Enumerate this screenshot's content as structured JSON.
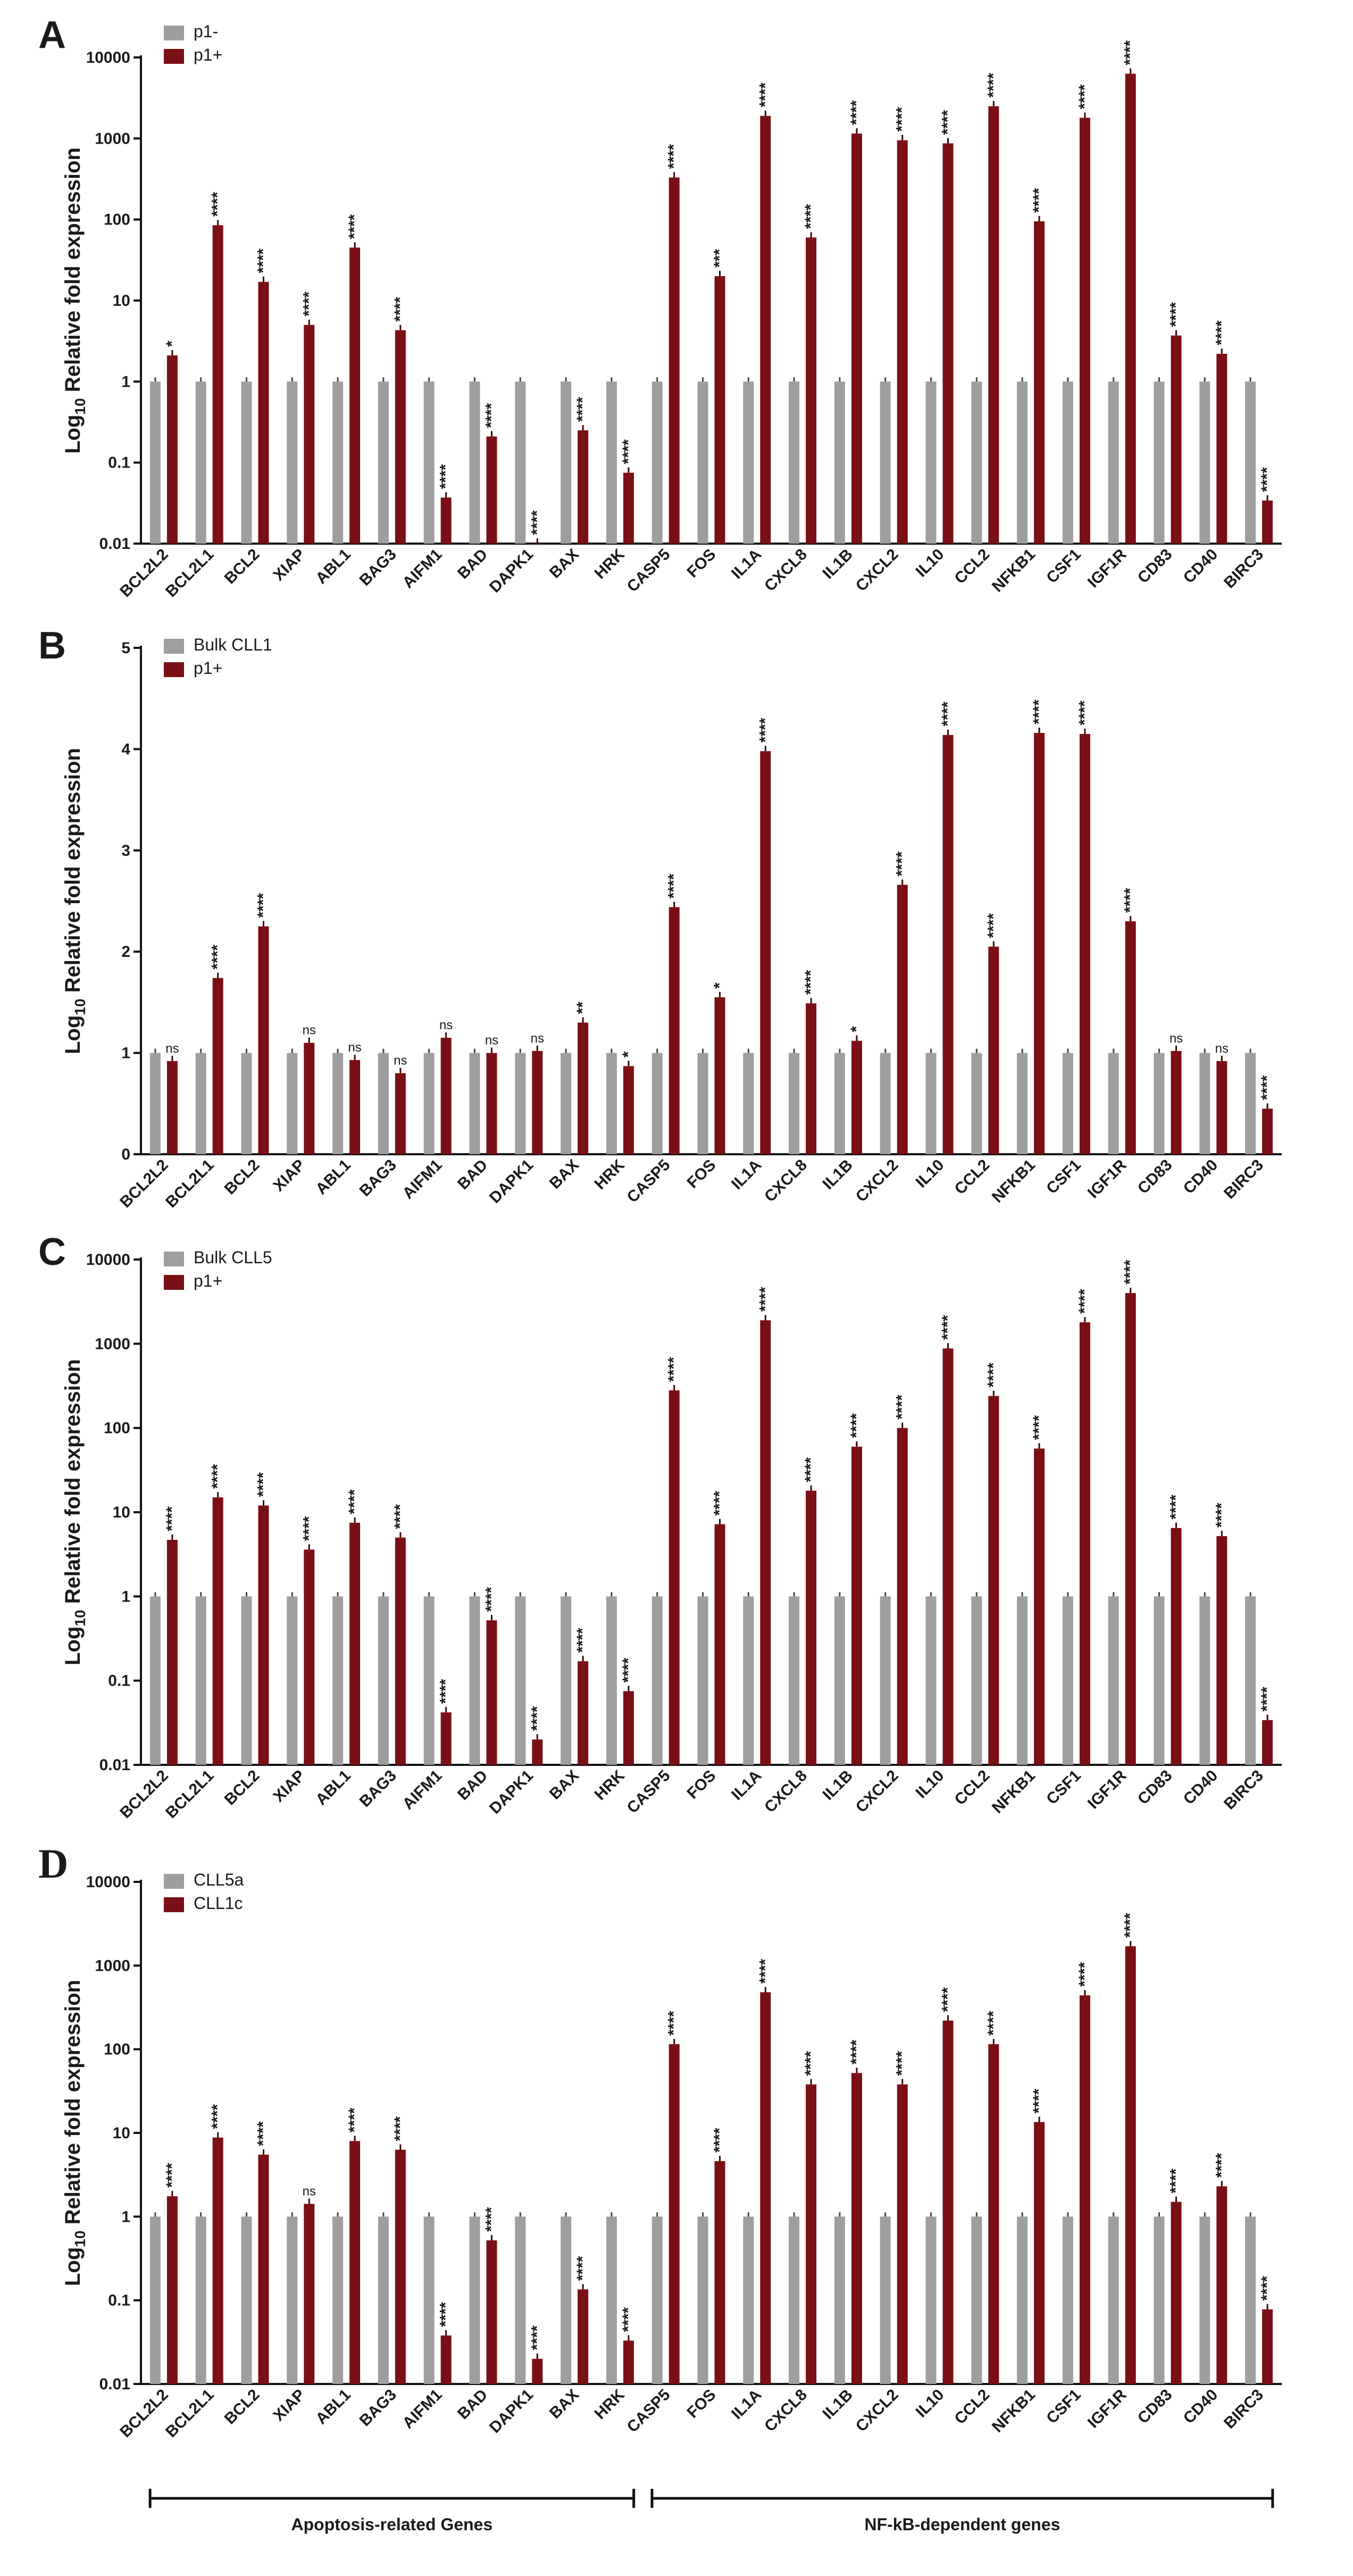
{
  "genes": [
    "BCL2L2",
    "BCL2L1",
    "BCL2",
    "XIAP",
    "ABL1",
    "BAG3",
    "AIFM1",
    "BAD",
    "DAPK1",
    "BAX",
    "HRK",
    "CASP5",
    "FOS",
    "IL1A",
    "CXCL8",
    "IL1B",
    "CXCL2",
    "IL10",
    "CCL2",
    "NFKB1",
    "CSF1",
    "IGF1R",
    "CD83",
    "CD40",
    "BIRC3"
  ],
  "colors": {
    "control": "#9e9e9e",
    "treated": "#7a0f15"
  },
  "chart_data": [
    {
      "panel": "A",
      "type": "bar",
      "scale": "log",
      "ylabel": "Log10 Relative fold expression",
      "ylim": [
        0.01,
        10000
      ],
      "yticks": [
        0.01,
        0.1,
        1,
        10,
        100,
        1000,
        10000
      ],
      "ytick_labels": [
        "0.01",
        "0.1",
        "1",
        "10",
        "100",
        "1000",
        "10000"
      ],
      "series": [
        {
          "name": "p1-",
          "values": [
            1,
            1,
            1,
            1,
            1,
            1,
            1,
            1,
            1,
            1,
            1,
            1,
            1,
            1,
            1,
            1,
            1,
            1,
            1,
            1,
            1,
            1,
            1,
            1,
            1
          ]
        },
        {
          "name": "p1+",
          "values": [
            2.1,
            85,
            17,
            5,
            45,
            4.3,
            0.037,
            0.21,
            0.01,
            0.25,
            0.075,
            330,
            20,
            1900,
            60,
            1150,
            950,
            870,
            2500,
            95,
            1800,
            6300,
            3.7,
            2.2,
            0.034
          ]
        }
      ],
      "significance": [
        "*",
        "****",
        "****",
        "****",
        "****",
        "****",
        "****",
        "****",
        "****",
        "****",
        "****",
        "****",
        "***",
        "****",
        "****",
        "****",
        "****",
        "****",
        "****",
        "****",
        "****",
        "****",
        "****",
        "****",
        "****"
      ]
    },
    {
      "panel": "B",
      "type": "bar",
      "scale": "linear",
      "ylabel": "Log10 Relative fold expression",
      "ylim": [
        0,
        5
      ],
      "yticks": [
        0,
        1,
        2,
        3,
        4,
        5
      ],
      "ytick_labels": [
        "0",
        "1",
        "2",
        "3",
        "4",
        "5"
      ],
      "series": [
        {
          "name": "Bulk CLL1",
          "values": [
            1,
            1,
            1,
            1,
            1,
            1,
            1,
            1,
            1,
            1,
            1,
            1,
            1,
            1,
            1,
            1,
            1,
            1,
            1,
            1,
            1,
            1,
            1,
            1,
            1
          ]
        },
        {
          "name": "p1+",
          "values": [
            0.92,
            1.74,
            2.25,
            1.1,
            0.93,
            0.8,
            1.15,
            1.0,
            1.02,
            1.3,
            0.87,
            2.44,
            1.55,
            3.98,
            1.49,
            1.12,
            2.66,
            4.14,
            2.05,
            4.16,
            4.15,
            2.3,
            1.02,
            0.92,
            0.45
          ]
        }
      ],
      "significance": [
        "ns",
        "****",
        "****",
        "ns",
        "ns",
        "ns",
        "ns",
        "ns",
        "ns",
        "**",
        "*",
        "****",
        "*",
        "****",
        "****",
        "*",
        "****",
        "****",
        "****",
        "****",
        "****",
        "****",
        "ns",
        "ns",
        "****"
      ]
    },
    {
      "panel": "C",
      "type": "bar",
      "scale": "log",
      "ylabel": "Log10 Relative fold expression",
      "ylim": [
        0.01,
        10000
      ],
      "yticks": [
        0.01,
        0.1,
        1,
        10,
        100,
        1000,
        10000
      ],
      "ytick_labels": [
        "0.01",
        "0.1",
        "1",
        "10",
        "100",
        "1000",
        "10000"
      ],
      "series": [
        {
          "name": "Bulk CLL5",
          "values": [
            1,
            1,
            1,
            1,
            1,
            1,
            1,
            1,
            1,
            1,
            1,
            1,
            1,
            1,
            1,
            1,
            1,
            1,
            1,
            1,
            1,
            1,
            1,
            1,
            1
          ]
        },
        {
          "name": "p1+",
          "values": [
            4.7,
            15,
            12,
            3.6,
            7.5,
            5,
            0.042,
            0.52,
            0.02,
            0.17,
            0.075,
            280,
            7.2,
            1900,
            18,
            60,
            100,
            880,
            240,
            57,
            1800,
            4000,
            6.5,
            5.2,
            0.034
          ]
        }
      ],
      "significance": [
        "****",
        "****",
        "****",
        "****",
        "****",
        "****",
        "****",
        "****",
        "****",
        "****",
        "****",
        "****",
        "****",
        "****",
        "****",
        "****",
        "****",
        "****",
        "****",
        "****",
        "****",
        "****",
        "****",
        "****",
        "****"
      ]
    },
    {
      "panel": "D",
      "type": "bar",
      "scale": "log",
      "ylabel": "Log10 Relative fold expression",
      "ylim": [
        0.01,
        10000
      ],
      "yticks": [
        0.01,
        0.1,
        1,
        10,
        100,
        1000,
        10000
      ],
      "ytick_labels": [
        "0.01",
        "0.1",
        "1",
        "10",
        "100",
        "1000",
        "10000"
      ],
      "series": [
        {
          "name": "CLL5a",
          "values": [
            1,
            1,
            1,
            1,
            1,
            1,
            1,
            1,
            1,
            1,
            1,
            1,
            1,
            1,
            1,
            1,
            1,
            1,
            1,
            1,
            1,
            1,
            1,
            1,
            1
          ]
        },
        {
          "name": "CLL1c",
          "values": [
            1.75,
            8.8,
            5.5,
            1.42,
            8,
            6.3,
            0.038,
            0.52,
            0.02,
            0.135,
            0.033,
            115,
            4.6,
            480,
            38,
            52,
            38,
            220,
            115,
            13.5,
            440,
            1700,
            1.5,
            2.3,
            0.078
          ]
        }
      ],
      "significance": [
        "****",
        "****",
        "****",
        "ns",
        "****",
        "****",
        "****",
        "****",
        "****",
        "****",
        "****",
        "****",
        "****",
        "****",
        "****",
        "****",
        "****",
        "****",
        "****",
        "****",
        "****",
        "****",
        "****",
        "****",
        "****"
      ],
      "groups": [
        {
          "label": "Apoptosis-related Genes",
          "from": 0,
          "to": 10
        },
        {
          "label": "NF-kB-dependent genes",
          "from": 11,
          "to": 24
        }
      ]
    }
  ]
}
